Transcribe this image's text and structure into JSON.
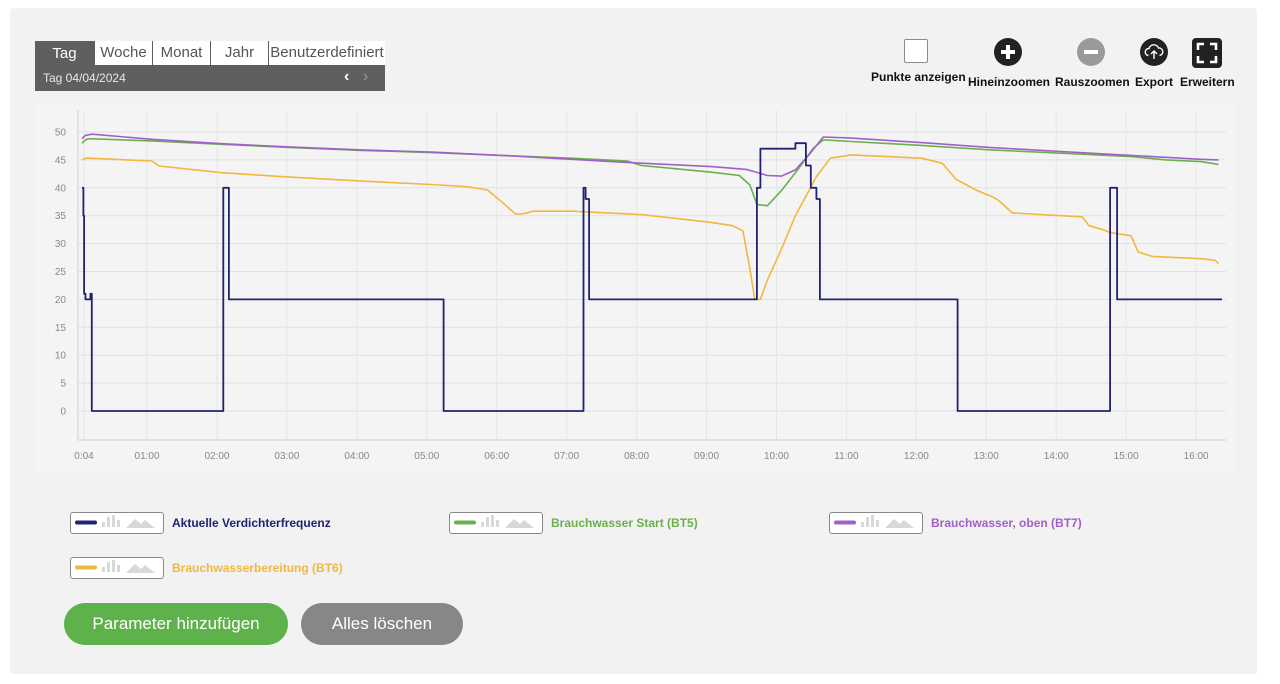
{
  "period": {
    "tabs": [
      "Tag",
      "Woche",
      "Monat",
      "Jahr",
      "Benutzerdefiniert"
    ],
    "active": "Tag",
    "date_label": "Tag  04/04/2024"
  },
  "toolbar": {
    "show_points": "Punkte anzeigen",
    "zoom_in": "Hineinzoomen",
    "zoom_out": "Rauszoomen",
    "export": "Export",
    "expand": "Erweitern"
  },
  "chart_data": {
    "type": "line",
    "xlabel": "",
    "ylabel": "",
    "ylim": [
      -5,
      52
    ],
    "xlim": [
      0.0,
      16.3
    ],
    "yticks": [
      0,
      5,
      10,
      15,
      20,
      25,
      30,
      35,
      40,
      45,
      50
    ],
    "xtick_labels": [
      "0:04",
      "01:00",
      "02:00",
      "03:00",
      "04:00",
      "05:00",
      "06:00",
      "07:00",
      "08:00",
      "09:00",
      "10:00",
      "11:00",
      "12:00",
      "13:00",
      "14:00",
      "15:00",
      "16:00"
    ],
    "grid": true,
    "series": [
      {
        "name": "Aktuelle Verdichterfrequenz",
        "color": "#1f2370",
        "step": true,
        "x": [
          0.0,
          0.02,
          0.03,
          0.05,
          0.12,
          0.14,
          2.0,
          2.02,
          2.05,
          2.1,
          5.15,
          5.17,
          7.15,
          7.17,
          7.2,
          7.25,
          9.62,
          9.65,
          9.7,
          10.17,
          10.2,
          10.32,
          10.35,
          10.4,
          10.42,
          10.47,
          10.5,
          10.55,
          12.5,
          12.52,
          14.67,
          14.7,
          14.75,
          14.8,
          16.3
        ],
        "y": [
          40,
          35,
          21,
          20,
          21,
          0,
          0,
          40,
          40,
          20,
          20,
          0,
          0,
          40,
          38,
          20,
          20,
          40,
          47,
          47,
          48,
          48,
          44,
          44,
          40,
          40,
          38,
          20,
          20,
          0,
          0,
          40,
          40,
          20,
          20
        ]
      },
      {
        "name": "Brauchwasser Start (BT5)",
        "color": "#6ab04c",
        "x": [
          0.0,
          0.05,
          0.1,
          1.0,
          2.0,
          3.0,
          4.0,
          5.0,
          6.0,
          7.0,
          7.8,
          8.0,
          8.5,
          9.0,
          9.4,
          9.55,
          9.65,
          9.8,
          10.0,
          10.25,
          10.45,
          10.6,
          11.0,
          12.0,
          13.0,
          14.0,
          15.0,
          15.5,
          16.0,
          16.25
        ],
        "y": [
          48,
          48.6,
          48.8,
          48.4,
          47.8,
          47.2,
          46.7,
          46.3,
          45.8,
          45.3,
          44.8,
          44.0,
          43.4,
          42.8,
          42.2,
          40.5,
          37.0,
          36.8,
          39.5,
          43.5,
          47.0,
          48.6,
          48.3,
          47.6,
          46.8,
          46.2,
          45.6,
          45.0,
          44.7,
          44.2
        ]
      },
      {
        "name": "Brauchwasser, oben (BT7)",
        "color": "#a25fc7",
        "x": [
          0.0,
          0.05,
          0.15,
          1.0,
          2.0,
          3.0,
          4.0,
          5.0,
          6.0,
          7.0,
          8.0,
          9.0,
          9.5,
          9.8,
          10.0,
          10.2,
          10.4,
          10.6,
          11.0,
          12.0,
          13.0,
          14.0,
          15.0,
          16.0,
          16.25
        ],
        "y": [
          48.8,
          49.4,
          49.6,
          48.7,
          47.9,
          47.3,
          46.8,
          46.4,
          45.8,
          45.1,
          44.4,
          43.8,
          43.3,
          42.2,
          42.1,
          43.2,
          46.0,
          49.1,
          48.9,
          48.1,
          47.2,
          46.5,
          45.8,
          45.1,
          45.0
        ]
      },
      {
        "name": "Brauchwasserbereitung (BT6)",
        "color": "#f0b840",
        "x": [
          0.0,
          0.05,
          0.1,
          1.0,
          1.1,
          2.0,
          3.0,
          4.0,
          5.0,
          5.5,
          5.8,
          6.0,
          6.2,
          6.3,
          6.45,
          7.0,
          8.0,
          9.0,
          9.3,
          9.45,
          9.55,
          9.62,
          9.7,
          9.8,
          10.0,
          10.2,
          10.5,
          10.7,
          11.0,
          12.0,
          12.3,
          12.5,
          12.8,
          13.0,
          13.1,
          13.3,
          14.0,
          14.3,
          14.4,
          14.6,
          14.7,
          14.9,
          15.0,
          15.1,
          15.3,
          16.0,
          16.2,
          16.25
        ],
        "y": [
          45,
          45.3,
          45.3,
          44.8,
          43.9,
          42.7,
          41.9,
          41.2,
          40.6,
          40.2,
          39.6,
          37.5,
          35.3,
          35.3,
          35.8,
          35.8,
          35.2,
          33.8,
          33.2,
          32.3,
          25.5,
          20.0,
          20.0,
          23.5,
          29.0,
          35.0,
          42.0,
          45.3,
          45.9,
          45.3,
          44.4,
          41.5,
          39.5,
          38.5,
          37.8,
          35.5,
          35.0,
          34.8,
          33.2,
          32.5,
          32.0,
          31.6,
          31.4,
          28.5,
          27.7,
          27.3,
          27.0,
          26.4
        ]
      }
    ]
  },
  "legend_items": [
    {
      "label": "Aktuelle Verdichterfrequenz",
      "color": "#1f2370"
    },
    {
      "label": "Brauchwasser Start (BT5)",
      "color": "#6ab04c"
    },
    {
      "label": "Brauchwasser, oben (BT7)",
      "color": "#a25fc7"
    },
    {
      "label": "Brauchwasserbereitung (BT6)",
      "color": "#f0b840"
    }
  ],
  "actions": {
    "add": "Parameter hinzufügen",
    "clear": "Alles löschen"
  }
}
